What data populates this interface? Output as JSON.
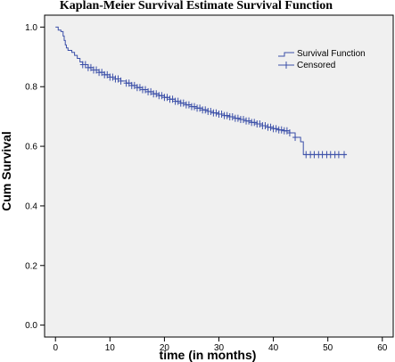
{
  "chart_data": {
    "type": "line",
    "title": "Kaplan-Meier Survival Estimate Survival Function",
    "xlabel": "time (in months)",
    "ylabel": "Cum Survival",
    "xlim": [
      -2,
      62
    ],
    "ylim": [
      -0.04,
      1.04
    ],
    "xticks": [
      0,
      10,
      20,
      30,
      40,
      50,
      60
    ],
    "yticks": [
      0.0,
      0.2,
      0.4,
      0.6,
      0.8,
      1.0
    ],
    "xtick_labels": [
      "0",
      "10",
      "20",
      "30",
      "40",
      "50",
      "60"
    ],
    "ytick_labels": [
      "0.0",
      "0.2",
      "0.4",
      "0.6",
      "0.8",
      "1.0"
    ],
    "grid": false,
    "legend_position": "top-right",
    "colors": {
      "line": "#3b4fa8",
      "plot_bg": "#f0f0f0",
      "axis": "#000000"
    },
    "series": [
      {
        "name": "Survival Function",
        "step": true,
        "points": [
          [
            0,
            1.0
          ],
          [
            0.5,
            0.99
          ],
          [
            1.0,
            0.985
          ],
          [
            1.4,
            0.97
          ],
          [
            1.6,
            0.955
          ],
          [
            1.8,
            0.94
          ],
          [
            2.0,
            0.93
          ],
          [
            2.3,
            0.922
          ],
          [
            3.0,
            0.915
          ],
          [
            3.5,
            0.905
          ],
          [
            4.0,
            0.895
          ],
          [
            4.5,
            0.883
          ],
          [
            5.0,
            0.874
          ],
          [
            6.0,
            0.864
          ],
          [
            7.0,
            0.856
          ],
          [
            8.0,
            0.848
          ],
          [
            9.0,
            0.84
          ],
          [
            10.0,
            0.832
          ],
          [
            11.0,
            0.826
          ],
          [
            12.0,
            0.819
          ],
          [
            13.0,
            0.812
          ],
          [
            14.0,
            0.804
          ],
          [
            15.0,
            0.797
          ],
          [
            16.0,
            0.79
          ],
          [
            17.0,
            0.783
          ],
          [
            18.0,
            0.776
          ],
          [
            19.0,
            0.77
          ],
          [
            20.0,
            0.764
          ],
          [
            21.0,
            0.758
          ],
          [
            22.0,
            0.751
          ],
          [
            23.0,
            0.745
          ],
          [
            24.0,
            0.739
          ],
          [
            25.0,
            0.733
          ],
          [
            26.0,
            0.728
          ],
          [
            27.0,
            0.722
          ],
          [
            28.0,
            0.717
          ],
          [
            29.0,
            0.712
          ],
          [
            30.0,
            0.708
          ],
          [
            31.0,
            0.703
          ],
          [
            32.0,
            0.699
          ],
          [
            33.0,
            0.694
          ],
          [
            34.0,
            0.69
          ],
          [
            35.0,
            0.685
          ],
          [
            36.0,
            0.68
          ],
          [
            37.0,
            0.675
          ],
          [
            38.0,
            0.669
          ],
          [
            39.0,
            0.664
          ],
          [
            40.0,
            0.659
          ],
          [
            41.0,
            0.655
          ],
          [
            42.0,
            0.652
          ],
          [
            43.0,
            0.645
          ],
          [
            44.0,
            0.63
          ],
          [
            45.0,
            0.615
          ],
          [
            45.5,
            0.572
          ],
          [
            53.5,
            0.572
          ]
        ]
      },
      {
        "name": "Censored",
        "marker": "+",
        "x": [
          5.0,
          5.5,
          6.0,
          6.5,
          7.0,
          7.5,
          8.0,
          8.5,
          9.0,
          9.5,
          10.0,
          10.5,
          11.0,
          11.5,
          12.0,
          13.0,
          13.5,
          14.0,
          14.5,
          15.0,
          15.5,
          16.0,
          16.5,
          17.0,
          17.5,
          18.0,
          18.5,
          19.0,
          19.5,
          20.0,
          20.5,
          21.0,
          21.5,
          22.0,
          22.5,
          23.0,
          23.5,
          24.0,
          24.5,
          25.0,
          25.5,
          26.0,
          26.5,
          27.0,
          27.5,
          28.0,
          28.5,
          29.0,
          29.5,
          30.0,
          30.5,
          31.0,
          31.5,
          32.0,
          32.5,
          33.0,
          33.5,
          34.0,
          34.5,
          35.0,
          35.5,
          36.0,
          36.5,
          37.0,
          37.5,
          38.0,
          38.5,
          39.0,
          39.5,
          40.0,
          40.5,
          41.0,
          41.5,
          42.0,
          42.5,
          43.0,
          44.0,
          46.0,
          46.8,
          47.5,
          48.3,
          49.0,
          49.8,
          50.5,
          51.3,
          52.0,
          53.0
        ]
      }
    ]
  }
}
